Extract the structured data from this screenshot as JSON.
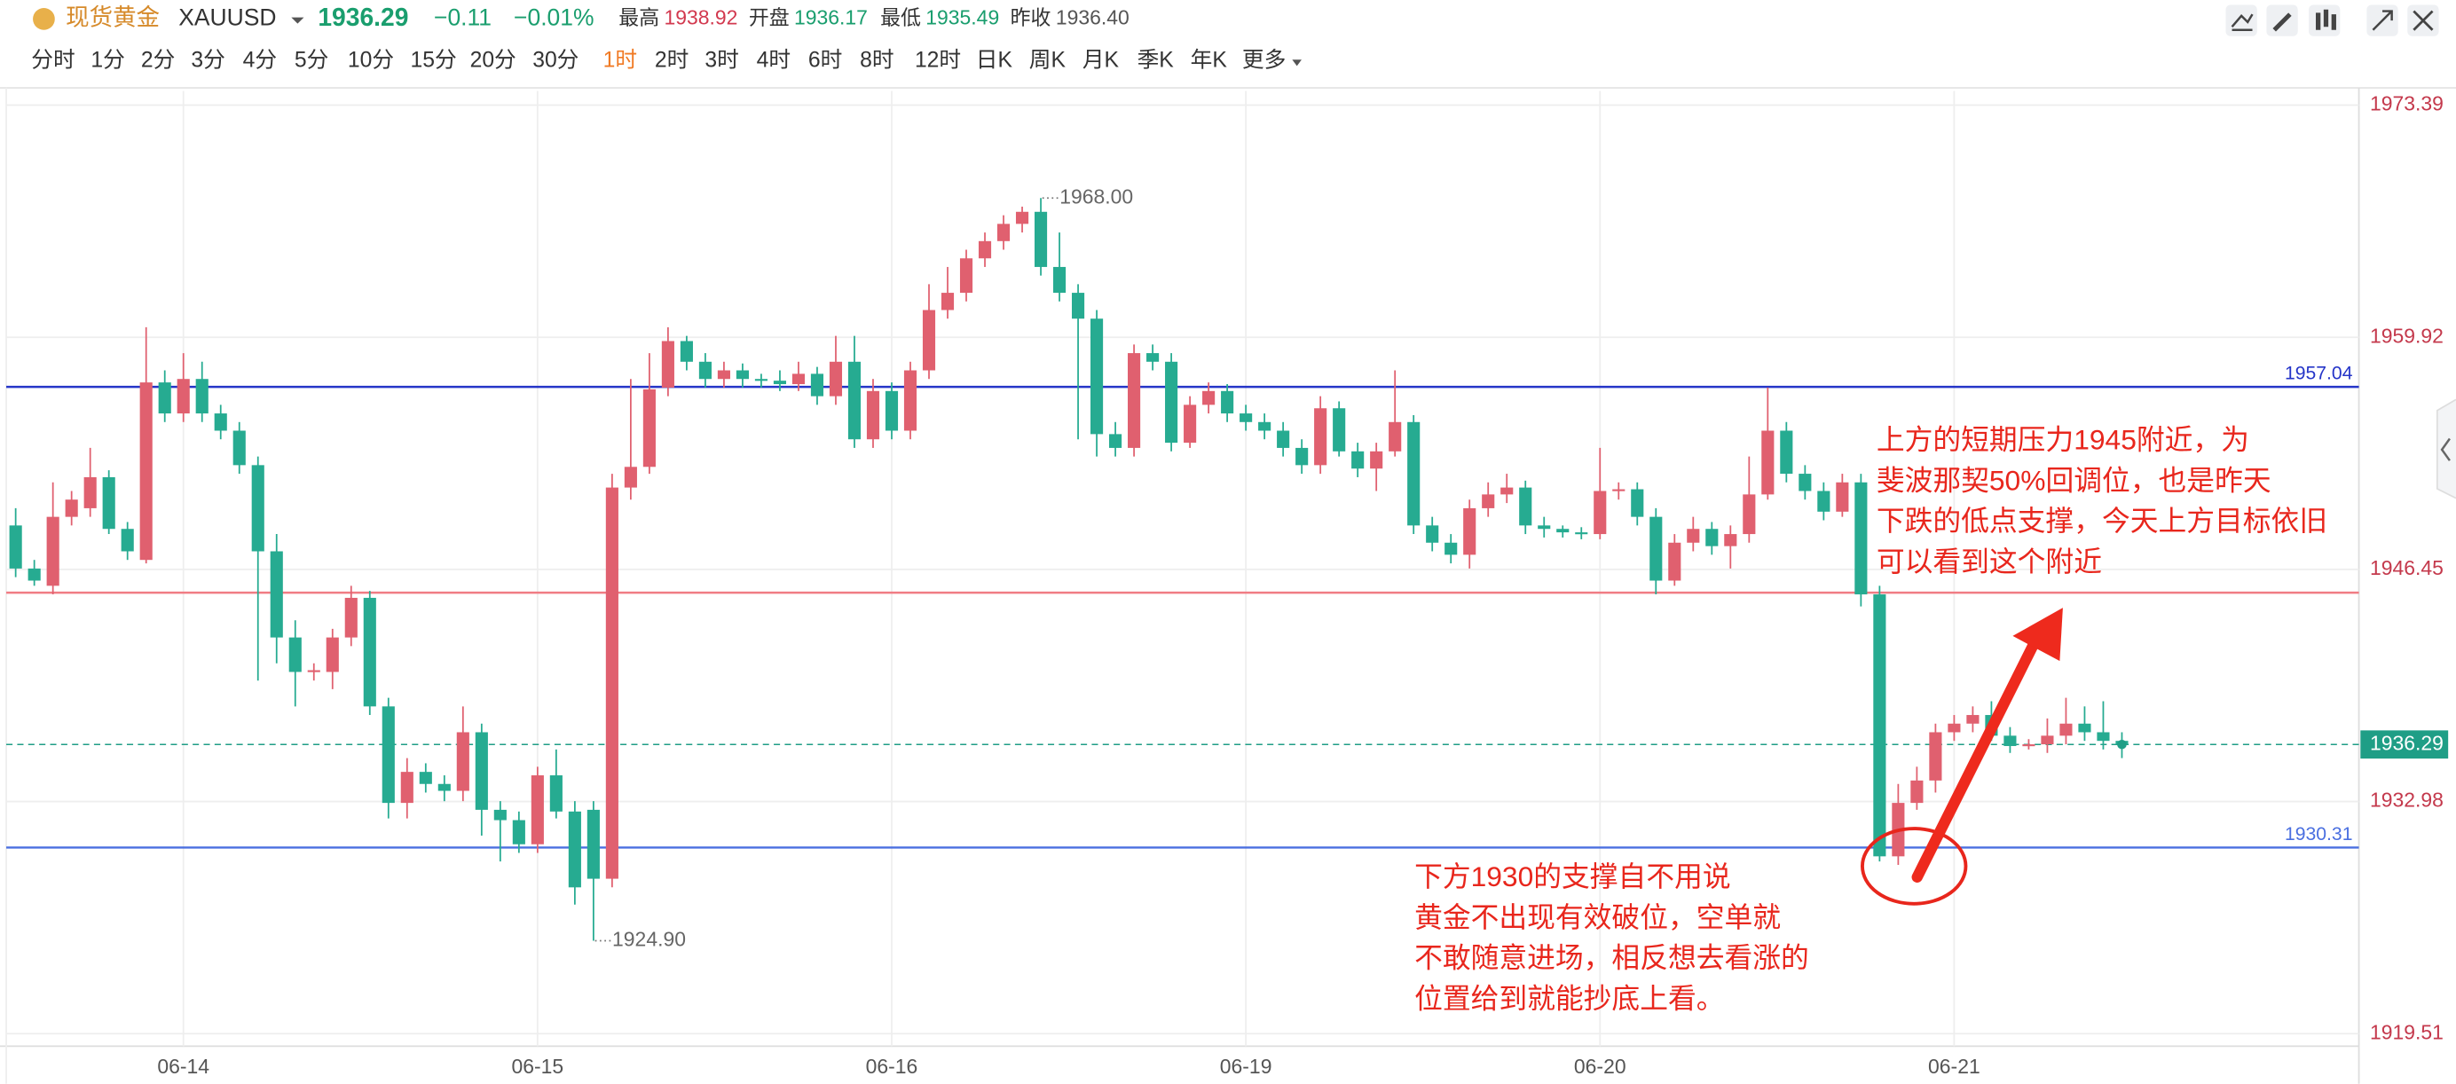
{
  "header": {
    "name": "现货黄金",
    "symbol": "XAUUSD",
    "price": "1936.29",
    "change": "−0.11",
    "change_pct": "−0.01%",
    "stats": [
      {
        "label": "最高",
        "value": "1938.92"
      },
      {
        "label": "开盘",
        "value": "1936.17"
      },
      {
        "label": "最低",
        "value": "1935.49"
      },
      {
        "label": "昨收",
        "value": "1936.40"
      }
    ]
  },
  "timeframes": [
    "分时",
    "1分",
    "2分",
    "3分",
    "4分",
    "5分",
    "10分",
    "15分",
    "20分",
    "30分",
    "1时",
    "2时",
    "3时",
    "4时",
    "6时",
    "8时",
    "12时",
    "日K",
    "周K",
    "月K",
    "季K",
    "年K",
    "更多"
  ],
  "selected_timeframe": "1时",
  "chart_data": {
    "type": "candlestick",
    "up_color": "#e0606f",
    "down_color": "#26ab91",
    "categories": [
      null,
      null,
      null,
      null,
      null,
      null,
      null,
      null,
      null,
      "06-14",
      null,
      null,
      null,
      null,
      null,
      null,
      null,
      null,
      null,
      null,
      null,
      null,
      null,
      null,
      null,
      null,
      null,
      null,
      "06-15",
      null,
      null,
      null,
      null,
      null,
      null,
      null,
      null,
      null,
      null,
      null,
      null,
      null,
      null,
      null,
      null,
      null,
      null,
      "06-16",
      null,
      null,
      null,
      null,
      null,
      null,
      null,
      null,
      null,
      null,
      null,
      null,
      null,
      null,
      null,
      null,
      null,
      null,
      "06-19",
      null,
      null,
      null,
      null,
      null,
      null,
      null,
      null,
      null,
      null,
      null,
      null,
      null,
      null,
      null,
      null,
      null,
      null,
      "06-20",
      null,
      null,
      null,
      null,
      null,
      null,
      null,
      null,
      null,
      null,
      null,
      null,
      null,
      null,
      null,
      null,
      null,
      null,
      "06-21",
      null,
      null,
      null,
      null,
      null,
      null,
      null,
      null,
      null
    ],
    "open": [
      1949,
      1946.5,
      1945.5,
      1949.5,
      1950,
      1951.8,
      1948.8,
      1947,
      1957.3,
      1955.5,
      1957.5,
      1955.5,
      1954.5,
      1952.5,
      1947.5,
      1942.5,
      1940.5,
      1940.5,
      1942.5,
      1944.8,
      1938.5,
      1932.9,
      1934.7,
      1934,
      1933.6,
      1937,
      1932.5,
      1931.9,
      1930.5,
      1934.5,
      1932.4,
      1932.5,
      1928.5,
      1951.2,
      1952.4,
      1957,
      1959.7,
      1958.5,
      1957.5,
      1958,
      1957.5,
      1957.4,
      1957.2,
      1957.8,
      1956.5,
      1958.5,
      1954,
      1956.8,
      1954.5,
      1958,
      1961.5,
      1962.5,
      1964.5,
      1965.5,
      1966.5,
      1967.2,
      1964,
      1962.5,
      1961,
      1954.3,
      1953.5,
      1959,
      1958.5,
      1953.8,
      1956,
      1956.8,
      1955.5,
      1955,
      1954.5,
      1953.5,
      1952.5,
      1955.8,
      1953.3,
      1952.3,
      1953.3,
      1955,
      1949,
      1948,
      1947.3,
      1950,
      1950.8,
      1951.2,
      1949,
      1948.8,
      1948.6,
      1948.5,
      1951,
      1951.1,
      1949.5,
      1945.8,
      1948,
      1948.8,
      1947.8,
      1948.5,
      1950.8,
      1954.5,
      1952,
      1951,
      1949.8,
      1951.5,
      1945,
      1929.8,
      1932.9,
      1934.2,
      1937,
      1937.5,
      1938,
      1936.8,
      1936.2,
      1936.3,
      1936.8,
      1937.5,
      1937,
      1936.5
    ],
    "high": [
      1950,
      1947,
      1951.5,
      1951,
      1953.5,
      1952.2,
      1949.2,
      1960.5,
      1958,
      1959,
      1958.5,
      1956,
      1955,
      1953,
      1948.5,
      1943.5,
      1941,
      1943,
      1945.5,
      1945.2,
      1939,
      1935.5,
      1935.2,
      1934.5,
      1938.5,
      1937.5,
      1933,
      1932.4,
      1935,
      1936,
      1933,
      1933,
      1952,
      1957.5,
      1959,
      1960.5,
      1960,
      1959,
      1958.5,
      1958.4,
      1957.8,
      1958,
      1958.5,
      1958.2,
      1960,
      1960,
      1957.5,
      1957.3,
      1958.5,
      1963,
      1964,
      1965,
      1966,
      1967,
      1967.5,
      1968,
      1966,
      1963,
      1961.5,
      1955,
      1959.5,
      1959.5,
      1959,
      1956.5,
      1957.3,
      1957.2,
      1956,
      1955.5,
      1955,
      1954,
      1956.5,
      1956.2,
      1953.8,
      1953.8,
      1958,
      1955.4,
      1949.5,
      1948.5,
      1950.5,
      1951.5,
      1952,
      1951.6,
      1949.5,
      1949,
      1948.9,
      1953.5,
      1951.5,
      1951.5,
      1950,
      1948.5,
      1949.5,
      1949.2,
      1949,
      1953,
      1957,
      1955,
      1952.5,
      1951.5,
      1952,
      1952,
      1945.5,
      1934,
      1935,
      1937.5,
      1938,
      1938.5,
      1938.8,
      1937.3,
      1936.6,
      1937.8,
      1939,
      1938.5,
      1938.8,
      1937
    ],
    "low": [
      1946,
      1945.5,
      1945,
      1949,
      1949.5,
      1948.5,
      1947,
      1946.8,
      1955,
      1955,
      1955,
      1954,
      1952,
      1940,
      1941,
      1938.5,
      1940,
      1939.5,
      1942,
      1938,
      1932,
      1932,
      1933.5,
      1933,
      1933,
      1931,
      1929.5,
      1930,
      1930,
      1932,
      1927,
      1924.9,
      1928,
      1950.5,
      1952,
      1956.5,
      1958,
      1957,
      1957,
      1957,
      1957,
      1956.8,
      1956.8,
      1956,
      1956,
      1953.5,
      1953.5,
      1954,
      1954,
      1957.5,
      1961,
      1962,
      1964,
      1965,
      1966,
      1963.5,
      1962,
      1954,
      1953,
      1953,
      1953,
      1958,
      1953.3,
      1953.5,
      1955.5,
      1955,
      1954.5,
      1954,
      1953,
      1952,
      1952,
      1953,
      1951.8,
      1951,
      1953,
      1948.5,
      1947.5,
      1946.8,
      1946.5,
      1949.5,
      1950.3,
      1948.5,
      1948.3,
      1948.3,
      1948.2,
      1948.2,
      1950.5,
      1949,
      1945,
      1945.5,
      1947.5,
      1947.3,
      1946.5,
      1948,
      1950.5,
      1951.5,
      1950.5,
      1949.3,
      1949.5,
      1944.3,
      1929.5,
      1929.3,
      1932.5,
      1933.5,
      1936.5,
      1937,
      1936.5,
      1935.8,
      1936,
      1935.8,
      1936.3,
      1936.5,
      1936,
      1935.5
    ],
    "close": [
      1946.5,
      1945.8,
      1949.5,
      1950.5,
      1951.8,
      1948.8,
      1947.5,
      1957.3,
      1955.5,
      1957.5,
      1955.5,
      1954.5,
      1952.5,
      1947.5,
      1942.5,
      1940.5,
      1940.6,
      1942.5,
      1944.8,
      1938.5,
      1932.9,
      1934.7,
      1934,
      1933.6,
      1937,
      1932.5,
      1931.9,
      1930.5,
      1934.5,
      1932.4,
      1928,
      1928.5,
      1951.2,
      1952.4,
      1956.9,
      1959.7,
      1958.5,
      1957.5,
      1958,
      1957.5,
      1957.4,
      1957.2,
      1957.8,
      1956.5,
      1958.5,
      1954,
      1956.8,
      1954.5,
      1958,
      1961.5,
      1962.5,
      1964.5,
      1965.5,
      1966.5,
      1967.2,
      1964,
      1962.5,
      1961,
      1954.3,
      1953.5,
      1959,
      1958.5,
      1953.8,
      1956,
      1956.8,
      1955.5,
      1955,
      1954.5,
      1953.5,
      1952.5,
      1955.8,
      1953.3,
      1952.3,
      1953.3,
      1955,
      1949,
      1948,
      1947.3,
      1950,
      1950.8,
      1951.2,
      1949,
      1948.8,
      1948.6,
      1948.5,
      1951,
      1951.1,
      1949.5,
      1945.8,
      1948,
      1948.8,
      1947.8,
      1948.5,
      1950.8,
      1954.5,
      1952,
      1951,
      1949.8,
      1951.5,
      1945,
      1929.8,
      1932.9,
      1934.2,
      1937,
      1937.5,
      1938,
      1936.8,
      1936.2,
      1936.3,
      1936.8,
      1937.5,
      1937,
      1936.5,
      1936.29
    ],
    "ylim": [
      1918.78,
      1974.21
    ],
    "yticks": [
      {
        "value": 1973.39,
        "label": "1973.39"
      },
      1959.92,
      1946.45,
      1932.98,
      1919.51
    ],
    "grid": true,
    "lines": [
      {
        "value": 1957.04,
        "label": "1957.04",
        "color": "#2535c8"
      },
      {
        "value": 1945.1,
        "color": "#f07c84"
      },
      {
        "value": 1930.31,
        "label": "1930.31",
        "color": "#4a6fe0"
      }
    ],
    "last_price": 1936.29,
    "last_color": "#1f9e86",
    "high_marker": {
      "value": 1968,
      "label": "1968.00"
    },
    "low_marker": {
      "value": 1924.9,
      "label": "1924.90"
    },
    "annotations": [
      {
        "lines": [
          "上方的短期压力1945附近，为",
          "斐波那契50%回调位，也是昨天",
          "下跌的低点支撑，今天上方目标依旧",
          "可以看到这个附近"
        ]
      },
      {
        "lines": [
          "下方1930的支撑自不用说",
          "黄金不出现有效破位，空单就",
          "不敢随意进场，相反想去看涨的",
          "位置给到就能抄底上看。"
        ]
      }
    ]
  }
}
